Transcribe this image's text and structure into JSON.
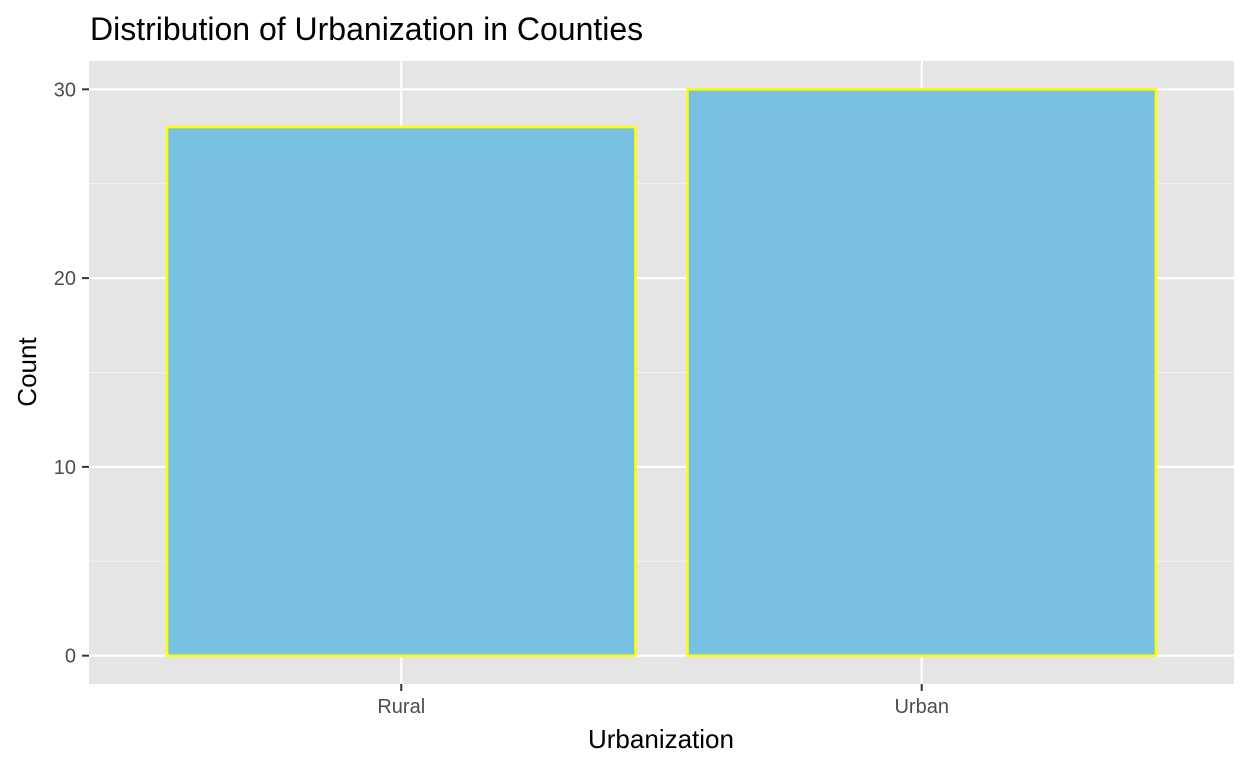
{
  "chart_data": {
    "type": "bar",
    "title": "Distribution of Urbanization in Counties",
    "xlabel": "Urbanization",
    "ylabel": "Count",
    "categories": [
      "Rural",
      "Urban"
    ],
    "values": [
      28,
      30
    ],
    "ylim": [
      -1.5,
      31.5
    ],
    "yticks": [
      0,
      10,
      20,
      30
    ],
    "ytick_labels": [
      "0",
      "10",
      "20",
      "30"
    ],
    "grid": true,
    "legend": "none",
    "colors": {
      "panel_background": "#E5E5E5",
      "grid_major": "#FFFFFF",
      "grid_minor": "#F2F2F2",
      "bar_fill": "#78C1E3",
      "bar_outline": "#FFFF00",
      "tick_text": "#4D4D4D",
      "tick_mark": "#333333"
    }
  }
}
